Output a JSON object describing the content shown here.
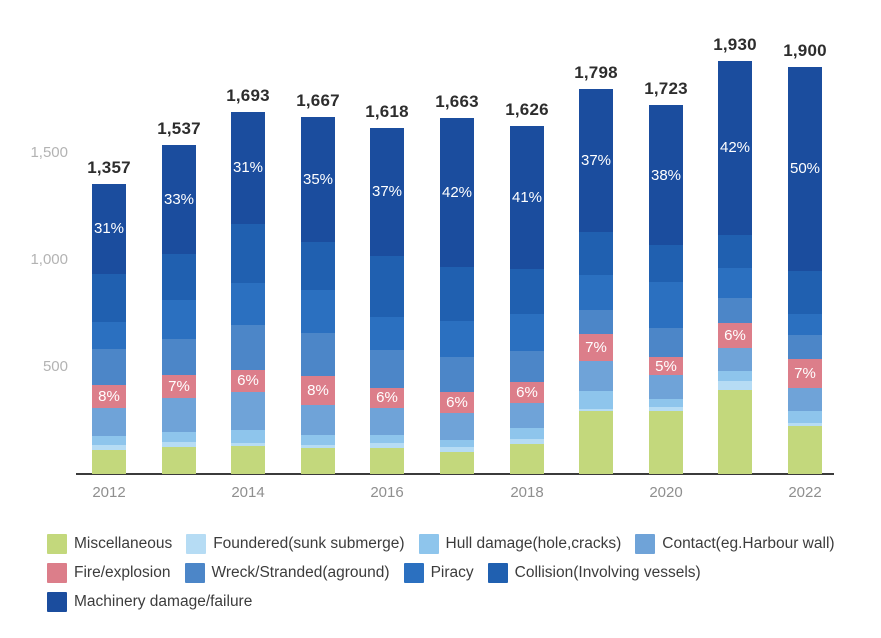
{
  "chart_data": {
    "type": "bar",
    "subtype": "stacked-vertical",
    "title": "",
    "categories": [
      "2012",
      "2013",
      "2014",
      "2015",
      "2016",
      "2017",
      "2018",
      "2019",
      "2020",
      "2021",
      "2022"
    ],
    "x_tick_labels_shown": [
      "2012",
      "2014",
      "2016",
      "2018",
      "2020",
      "2022"
    ],
    "x_tick_indices": [
      0,
      2,
      4,
      6,
      8,
      10
    ],
    "totals": [
      1357,
      1537,
      1693,
      1667,
      1618,
      1663,
      1626,
      1798,
      1723,
      1930,
      1900
    ],
    "total_labels": [
      "1,357",
      "1,537",
      "1,693",
      "1,667",
      "1,618",
      "1,663",
      "1,626",
      "1,798",
      "1,723",
      "1,930",
      "1,900"
    ],
    "series": [
      {
        "id": "miscellaneous",
        "name": "Miscellaneous",
        "color": "#c3d87c",
        "values": [
          110,
          128,
          132,
          121,
          123,
          104,
          140,
          293,
          293,
          394,
          223
        ]
      },
      {
        "id": "foundered-sunk-submerge",
        "name": "Foundered(sunk submerge)",
        "color": "#b6dcf4",
        "values": [
          25,
          23,
          11,
          14,
          23,
          23,
          22,
          13,
          19,
          39,
          15
        ]
      },
      {
        "id": "hull-damage-hole-cracks",
        "name": "Hull damage(hole,cracks)",
        "color": "#8ec5ec",
        "values": [
          45,
          47,
          62,
          47,
          36,
          31,
          51,
          81,
          36,
          47,
          57
        ]
      },
      {
        "id": "contact-harbour-wall",
        "name": "Contact(eg.Harbour wall)",
        "color": "#6fa3d8",
        "values": [
          130,
          156,
          179,
          140,
          125,
          125,
          117,
          143,
          112,
          109,
          109
        ]
      },
      {
        "id": "fire-explosion",
        "name": "Fire/explosion",
        "color": "#dc7e8a",
        "values": [
          109,
          108,
          102,
          133,
          97,
          100,
          98,
          126,
          86,
          116,
          133
        ],
        "labels": [
          "8%",
          "7%",
          "6%",
          "8%",
          "6%",
          "6%",
          "6%",
          "7%",
          "5%",
          "6%",
          "7%"
        ]
      },
      {
        "id": "wreck-stranded-aground",
        "name": "Wreck/Stranded(aground)",
        "color": "#4c86c8",
        "values": [
          165,
          171,
          210,
          202,
          174,
          163,
          148,
          109,
          135,
          117,
          112
        ]
      },
      {
        "id": "piracy",
        "name": "Piracy",
        "color": "#2b70c0",
        "values": [
          125,
          182,
          198,
          202,
          156,
          171,
          171,
          163,
          215,
          143,
          97
        ]
      },
      {
        "id": "collision-involving-vessels",
        "name": "Collision(Involving vessels)",
        "color": "#2060b0",
        "values": [
          227,
          215,
          274,
          225,
          285,
          248,
          212,
          205,
          172,
          154,
          204
        ]
      },
      {
        "id": "machinery-damage-failure",
        "name": "Machinery damage/failure",
        "color": "#1b4d9e",
        "values": [
          421,
          507,
          525,
          583,
          599,
          698,
          667,
          665,
          655,
          811,
          950
        ],
        "labels": [
          "31%",
          "33%",
          "31%",
          "35%",
          "37%",
          "42%",
          "41%",
          "37%",
          "38%",
          "42%",
          "50%"
        ]
      }
    ],
    "y_ticks": [
      {
        "label": "500",
        "value": 500
      },
      {
        "label": "1,000",
        "value": 1000
      },
      {
        "label": "1,500",
        "value": 1500
      }
    ],
    "ylim": [
      0,
      2100
    ],
    "grid": false,
    "legend_position": "bottom",
    "legend_rows": [
      [
        0,
        1,
        2,
        3
      ],
      [
        4,
        5,
        6,
        7
      ],
      [
        8
      ]
    ]
  }
}
